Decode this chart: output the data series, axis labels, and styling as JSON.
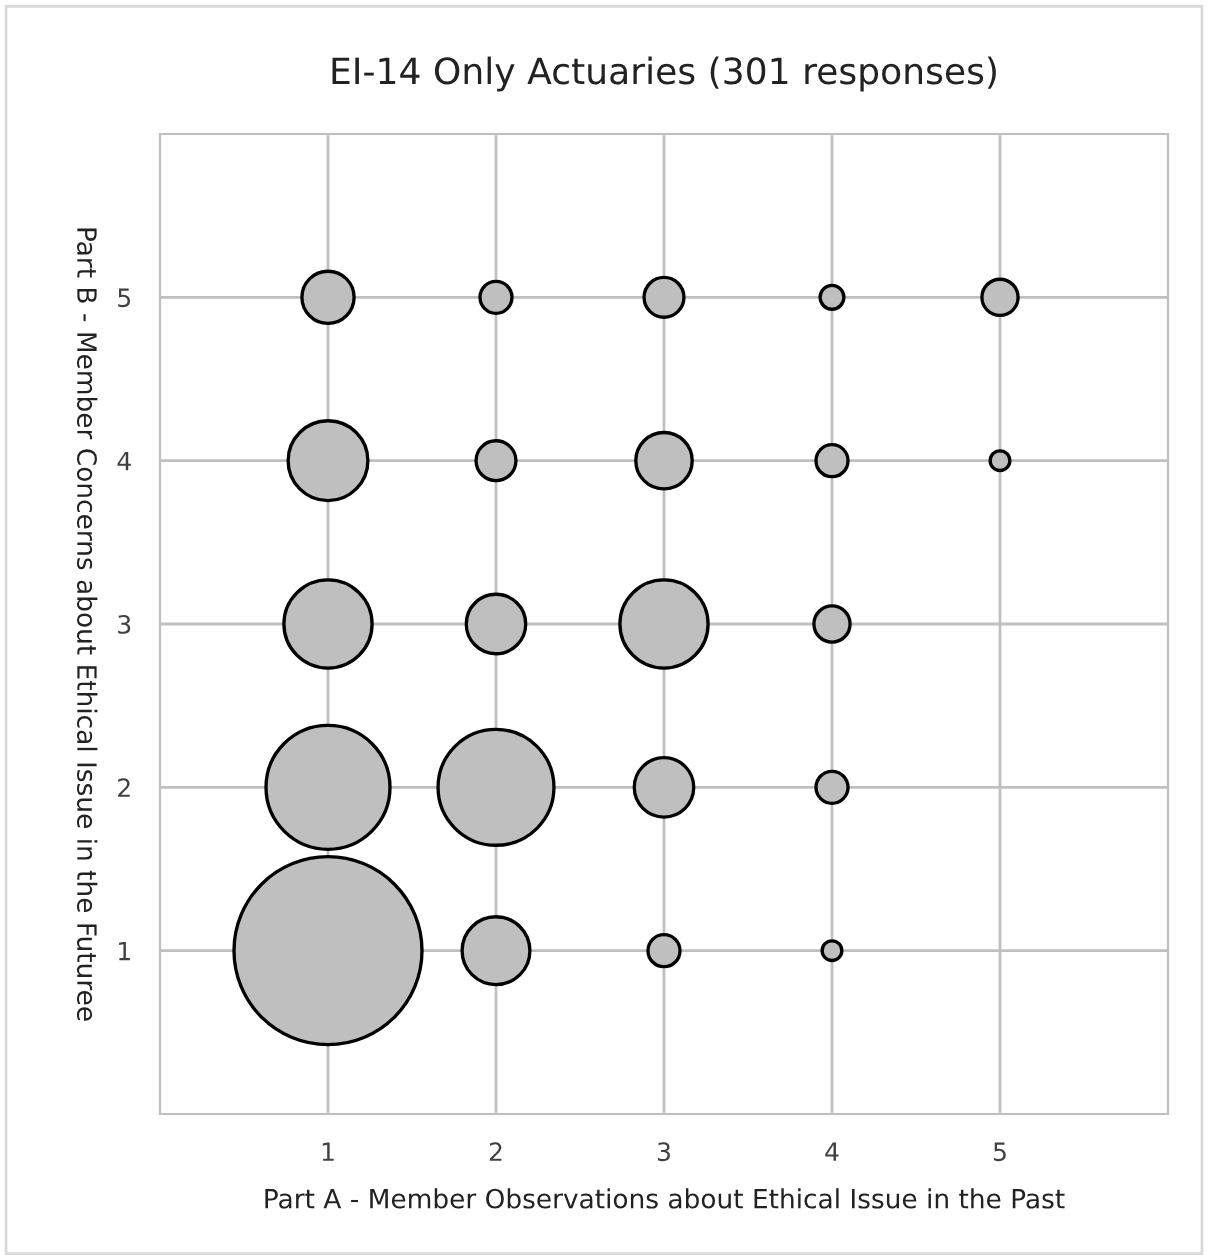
{
  "chart_data": {
    "type": "bubble",
    "title": "EI-14 Only Actuaries (301 responses)",
    "xlabel": "Part A - Member Observations about Ethical Issue in the Past",
    "ylabel": "Part B - Member Concerns about Ethical Issue in the Futuree",
    "xlim": [
      0,
      6
    ],
    "ylim": [
      0,
      6
    ],
    "xticks": [
      1,
      2,
      3,
      4,
      5
    ],
    "yticks": [
      1,
      2,
      3,
      4,
      5
    ],
    "grid": true,
    "series": [
      {
        "color": "#bfbfbf",
        "x": [
          1,
          1,
          1,
          1,
          1,
          2,
          2,
          2,
          2,
          2,
          3,
          3,
          3,
          3,
          3,
          4,
          4,
          4,
          4,
          4,
          5,
          5
        ],
        "values": [
          1,
          2,
          3,
          4,
          5,
          1,
          2,
          3,
          4,
          5,
          1,
          2,
          3,
          4,
          5,
          1,
          2,
          3,
          4,
          5,
          4,
          5
        ],
        "sizes": [
          1,
          0.435,
          0.22,
          0.18,
          0.077,
          0.13,
          0.38,
          0.1,
          0.045,
          0.029,
          0.029,
          0.1,
          0.22,
          0.09,
          0.045,
          0.011,
          0.029,
          0.037,
          0.029,
          0.016,
          0.011,
          0.037
        ]
      }
    ]
  }
}
